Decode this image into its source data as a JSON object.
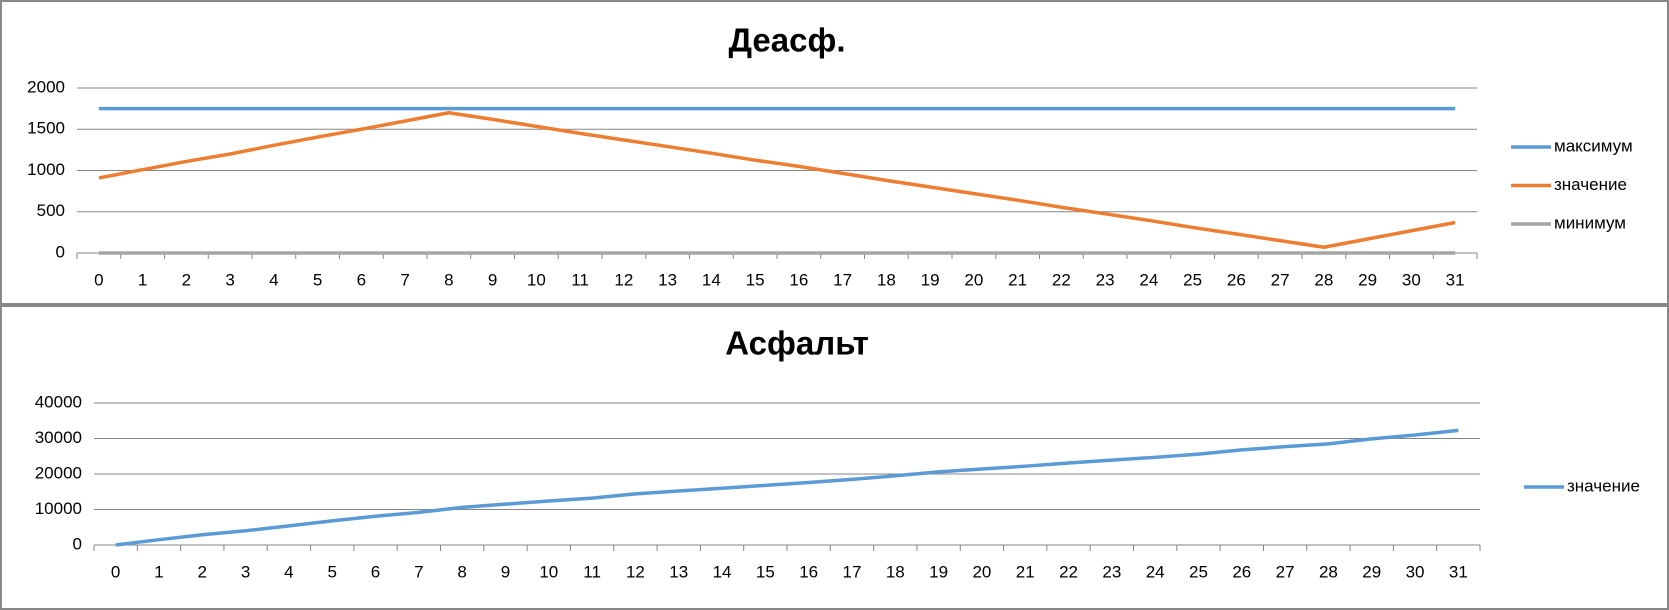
{
  "chart_data": [
    {
      "type": "line",
      "title": "Деасф.",
      "categories": [
        0,
        1,
        2,
        3,
        4,
        5,
        6,
        7,
        8,
        9,
        10,
        11,
        12,
        13,
        14,
        15,
        16,
        17,
        18,
        19,
        20,
        21,
        22,
        23,
        24,
        25,
        26,
        27,
        28,
        29,
        30,
        31
      ],
      "series": [
        {
          "name": "максимум",
          "color": "#5b9bd5",
          "values": [
            1750,
            1750,
            1750,
            1750,
            1750,
            1750,
            1750,
            1750,
            1750,
            1750,
            1750,
            1750,
            1750,
            1750,
            1750,
            1750,
            1750,
            1750,
            1750,
            1750,
            1750,
            1750,
            1750,
            1750,
            1750,
            1750,
            1750,
            1750,
            1750,
            1750,
            1750,
            1750
          ]
        },
        {
          "name": "значение",
          "color": "#ed7d31",
          "values": [
            910,
            1010,
            1110,
            1200,
            1305,
            1405,
            1500,
            1600,
            1700,
            1620,
            1535,
            1450,
            1370,
            1290,
            1210,
            1125,
            1050,
            965,
            880,
            800,
            720,
            640,
            555,
            475,
            395,
            310,
            230,
            150,
            70,
            170,
            270,
            370
          ]
        },
        {
          "name": "минимум",
          "color": "#a5a5a5",
          "values": [
            0,
            0,
            0,
            0,
            0,
            0,
            0,
            0,
            0,
            0,
            0,
            0,
            0,
            0,
            0,
            0,
            0,
            0,
            0,
            0,
            0,
            0,
            0,
            0,
            0,
            0,
            0,
            0,
            0,
            0,
            0,
            0
          ]
        }
      ],
      "ylim": [
        0,
        2000
      ],
      "yticks": [
        0,
        500,
        1000,
        1500,
        2000
      ],
      "grid": true,
      "legend": "right"
    },
    {
      "type": "line",
      "title": "Асфальт",
      "categories": [
        0,
        1,
        2,
        3,
        4,
        5,
        6,
        7,
        8,
        9,
        10,
        11,
        12,
        13,
        14,
        15,
        16,
        17,
        18,
        19,
        20,
        21,
        22,
        23,
        24,
        25,
        26,
        27,
        28,
        29,
        30,
        31
      ],
      "series": [
        {
          "name": "значение",
          "color": "#5b9bd5",
          "values": [
            0,
            1500,
            2900,
            4000,
            5400,
            6800,
            8100,
            9200,
            10600,
            11500,
            12400,
            13200,
            14400,
            15200,
            16000,
            16800,
            17600,
            18500,
            19500,
            20600,
            21400,
            22200,
            23100,
            23900,
            24700,
            25600,
            26800,
            27700,
            28500,
            29900,
            31000,
            32300
          ]
        }
      ],
      "ylim": [
        0,
        40000
      ],
      "yticks": [
        0,
        10000,
        20000,
        30000,
        40000
      ],
      "grid": true,
      "legend": "right"
    }
  ]
}
